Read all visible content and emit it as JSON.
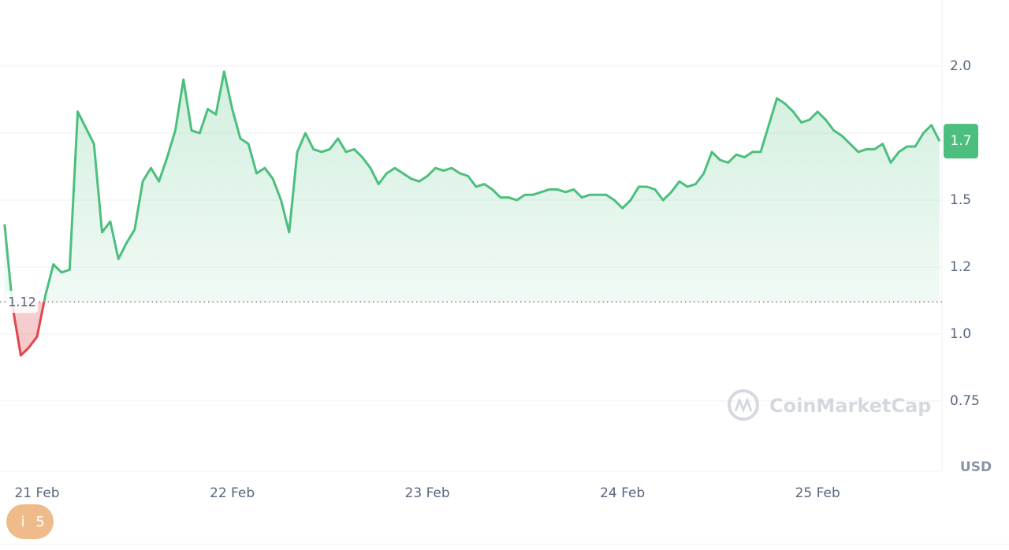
{
  "chart_data": {
    "type": "line",
    "x": [
      -4,
      -3,
      -2,
      -1,
      0,
      1,
      2,
      3,
      4,
      5,
      6,
      7,
      8,
      9,
      10,
      11,
      12,
      13,
      14,
      15,
      16,
      17,
      18,
      19,
      20,
      21,
      22,
      23,
      24,
      25,
      26,
      27,
      28,
      29,
      30,
      31,
      32,
      33,
      34,
      35,
      36,
      37,
      38,
      39,
      40,
      41,
      42,
      43,
      44,
      45,
      46,
      47,
      48,
      49,
      50,
      51,
      52,
      53,
      54,
      55,
      56,
      57,
      58,
      59,
      60,
      61,
      62,
      63,
      64,
      65,
      66,
      67,
      68,
      69,
      70,
      71,
      72,
      73,
      74,
      75,
      76,
      77,
      78,
      79,
      80,
      81,
      82,
      83,
      84,
      85,
      86,
      87,
      88,
      89,
      90,
      91,
      92,
      93,
      94,
      95,
      96,
      97,
      98,
      99,
      100,
      101,
      102,
      103,
      104,
      105,
      106,
      107,
      108,
      109,
      110,
      111
    ],
    "series": [
      {
        "color": "#4cbf7e",
        "down_color": "#e0474c",
        "values": [
          1.41,
          1.1,
          0.92,
          0.95,
          0.99,
          1.14,
          1.26,
          1.23,
          1.24,
          1.83,
          1.77,
          1.71,
          1.38,
          1.42,
          1.28,
          1.34,
          1.39,
          1.57,
          1.62,
          1.57,
          1.66,
          1.76,
          1.95,
          1.76,
          1.75,
          1.84,
          1.82,
          1.98,
          1.84,
          1.73,
          1.71,
          1.6,
          1.62,
          1.58,
          1.5,
          1.38,
          1.68,
          1.75,
          1.69,
          1.68,
          1.69,
          1.73,
          1.68,
          1.69,
          1.66,
          1.62,
          1.56,
          1.6,
          1.62,
          1.6,
          1.58,
          1.57,
          1.59,
          1.62,
          1.61,
          1.62,
          1.6,
          1.59,
          1.55,
          1.56,
          1.54,
          1.51,
          1.51,
          1.5,
          1.52,
          1.52,
          1.53,
          1.54,
          1.54,
          1.53,
          1.54,
          1.51,
          1.52,
          1.52,
          1.52,
          1.5,
          1.47,
          1.5,
          1.55,
          1.55,
          1.54,
          1.5,
          1.53,
          1.57,
          1.55,
          1.56,
          1.6,
          1.68,
          1.65,
          1.64,
          1.67,
          1.66,
          1.68,
          1.68,
          1.78,
          1.88,
          1.86,
          1.83,
          1.79,
          1.8,
          1.83,
          1.8,
          1.76,
          1.74,
          1.71,
          1.68,
          1.69,
          1.69,
          1.71,
          1.64,
          1.68,
          1.7,
          1.7,
          1.75,
          1.78,
          1.72
        ]
      }
    ],
    "xlim": [
      -4.56,
      111.3
    ],
    "xticks": [
      {
        "value": 0,
        "label": "21 Feb"
      },
      {
        "value": 24,
        "label": "22 Feb"
      },
      {
        "value": 48,
        "label": "23 Feb"
      },
      {
        "value": 72,
        "label": "24 Feb"
      },
      {
        "value": 96,
        "label": "25 Feb"
      }
    ],
    "ylim": [
      0.488,
      2.247
    ],
    "yticks": [
      0.75,
      {
        "value": 1,
        "label": "1.0"
      },
      {
        "value": 1.25,
        "label": "1.2"
      },
      1.5,
      1.75,
      {
        "value": 2,
        "label": "2.0"
      }
    ],
    "grid": true,
    "baseline": 1.12,
    "current_price_label": "1.7",
    "currency": "USD",
    "watermark": "CoinMarketCap",
    "badge": {
      "icon": "i",
      "count": 5
    }
  }
}
